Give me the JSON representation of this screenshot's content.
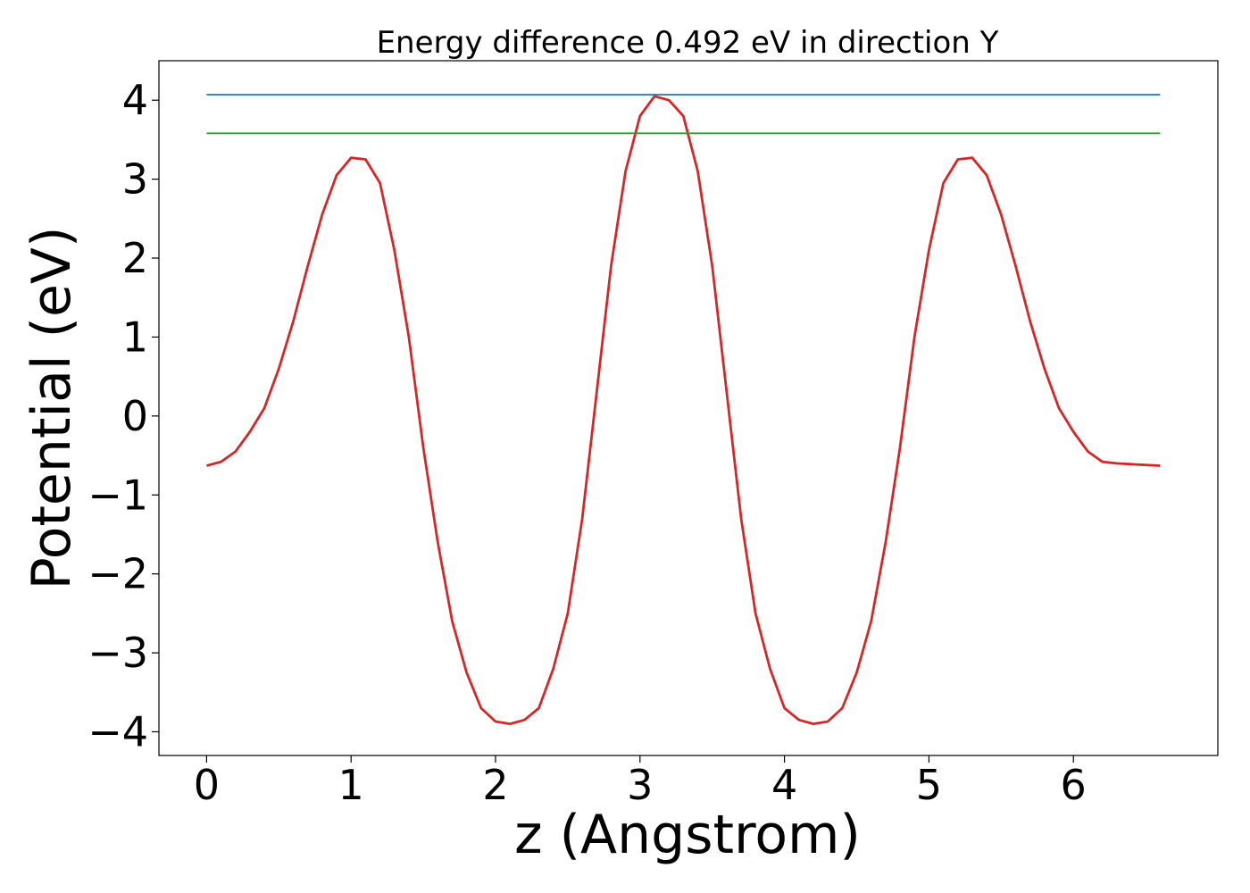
{
  "chart_data": {
    "type": "line",
    "title": "Energy difference 0.492 eV in direction Y",
    "xlabel": "z (Angstrom)",
    "ylabel": "Potential (eV)",
    "xlim": [
      -0.33,
      7.0
    ],
    "ylim": [
      -4.3,
      4.5
    ],
    "xticks": [
      0,
      1,
      2,
      3,
      4,
      5,
      6
    ],
    "xtick_labels": [
      "0",
      "1",
      "2",
      "3",
      "4",
      "5",
      "6"
    ],
    "yticks": [
      4,
      3,
      2,
      1,
      0,
      -1,
      -2,
      -3,
      -4
    ],
    "ytick_labels": [
      "4",
      "3",
      "2",
      "1",
      "0",
      "−1",
      "−2",
      "−3",
      "−4"
    ],
    "grid": false,
    "series": [
      {
        "color": "#d62728",
        "x": [
          0.0,
          0.1,
          0.2,
          0.3,
          0.4,
          0.5,
          0.6,
          0.7,
          0.8,
          0.9,
          1.0,
          1.1,
          1.2,
          1.3,
          1.4,
          1.5,
          1.6,
          1.7,
          1.8,
          1.9,
          2.0,
          2.1,
          2.2,
          2.3,
          2.4,
          2.5,
          2.6,
          2.7,
          2.8,
          2.9,
          3.0,
          3.1,
          3.2,
          3.3,
          3.4,
          3.5,
          3.6,
          3.7,
          3.8,
          3.9,
          4.0,
          4.1,
          4.2,
          4.3,
          4.4,
          4.5,
          4.6,
          4.7,
          4.8,
          4.9,
          5.0,
          5.1,
          5.2,
          5.3,
          5.4,
          5.5,
          5.6,
          5.7,
          5.8,
          5.9,
          6.0,
          6.1,
          6.2,
          6.3,
          6.4,
          6.5,
          6.6
        ],
        "y": [
          -0.63,
          -0.58,
          -0.45,
          -0.2,
          0.1,
          0.6,
          1.2,
          1.9,
          2.55,
          3.05,
          3.27,
          3.25,
          2.95,
          2.1,
          1.0,
          -0.4,
          -1.6,
          -2.6,
          -3.25,
          -3.7,
          -3.87,
          -3.9,
          -3.85,
          -3.7,
          -3.2,
          -2.5,
          -1.3,
          0.3,
          1.9,
          3.1,
          3.8,
          4.05,
          4.0,
          3.8,
          3.1,
          1.9,
          0.3,
          -1.3,
          -2.5,
          -3.2,
          -3.7,
          -3.85,
          -3.9,
          -3.87,
          -3.7,
          -3.25,
          -2.6,
          -1.6,
          -0.4,
          1.0,
          2.1,
          2.95,
          3.25,
          3.27,
          3.05,
          2.55,
          1.9,
          1.2,
          0.6,
          0.1,
          -0.2,
          -0.45,
          -0.58,
          -0.6,
          -0.61,
          -0.62,
          -0.63
        ]
      },
      {
        "color": "#1f77b4",
        "x": [
          0.0,
          6.6
        ],
        "y": [
          4.07,
          4.07
        ]
      },
      {
        "color": "#2ca02c",
        "x": [
          0.0,
          6.6
        ],
        "y": [
          3.58,
          3.58
        ]
      }
    ]
  }
}
